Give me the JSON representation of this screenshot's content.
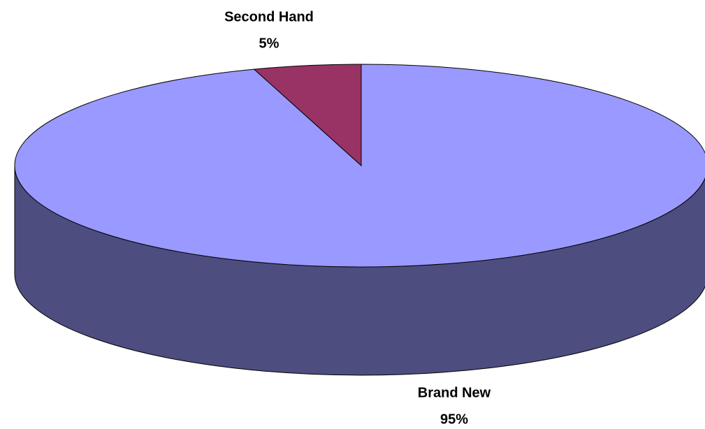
{
  "chart_data": {
    "type": "pie3d",
    "categories": [
      "Brand New",
      "Second Hand"
    ],
    "values": [
      95,
      5
    ],
    "value_labels": [
      "95%",
      "5%"
    ],
    "colors": [
      "#9999ff",
      "#993366"
    ]
  }
}
